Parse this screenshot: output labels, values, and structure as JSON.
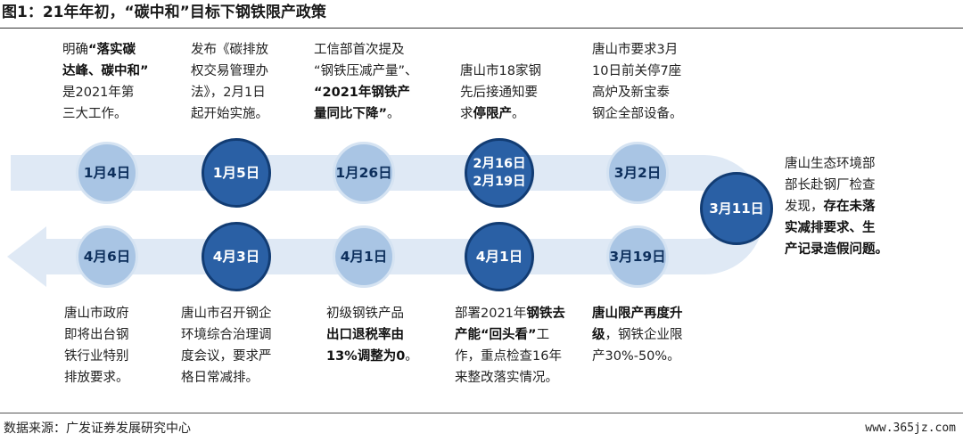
{
  "title": "图1：21年年初，“碳中和”目标下钢铁限产政策",
  "source": "数据来源：广发证券发展研究中心",
  "watermark": "www.365jz.com",
  "colors": {
    "band": "#dfe9f5",
    "light_node": "#a9c5e4",
    "dark_node": "#2a60a5"
  },
  "top_row": [
    {
      "date": "1月4日",
      "style": "light",
      "desc": [
        {
          "t": "明确"
        },
        {
          "t": "“落实碳\n达峰、碳中和”",
          "b": true
        },
        {
          "t": "\n是2021年第\n三大工作。"
        }
      ]
    },
    {
      "date": "1月5日",
      "style": "dark",
      "desc": [
        {
          "t": "发布《碳排放\n权交易管理办\n法》，2月1日\n起开始实施。"
        }
      ]
    },
    {
      "date": "1月26日",
      "style": "light",
      "desc": [
        {
          "t": "工信部首次提及\n“钢铁压减产量”、\n"
        },
        {
          "t": "“2021年钢铁产\n量同比下降”",
          "b": true
        },
        {
          "t": "。"
        }
      ]
    },
    {
      "date": "2月16日\n2月19日",
      "style": "dark",
      "desc": [
        {
          "t": "唐山市18家钢\n先后接通知要\n求"
        },
        {
          "t": "停限产",
          "b": true
        },
        {
          "t": "。"
        }
      ]
    },
    {
      "date": "3月2日",
      "style": "light",
      "desc": [
        {
          "t": "唐山市要求3月\n10日前关停7座\n高炉及新宝泰\n钢企全部设备。"
        }
      ]
    }
  ],
  "turn_node": {
    "date": "3月11日",
    "style": "dark",
    "desc": [
      {
        "t": "唐山生态环境部\n部长赴钢厂检查\n发现，"
      },
      {
        "t": "存在未落\n实减排要求、生\n产记录造假问题。",
        "b": true
      }
    ]
  },
  "bottom_row": [
    {
      "date": "4月6日",
      "style": "light",
      "desc": [
        {
          "t": "唐山市政府\n即将出台钢\n铁行业特别\n排放要求。"
        }
      ]
    },
    {
      "date": "4月3日",
      "style": "dark",
      "desc": [
        {
          "t": "唐山市召开钢企\n环境综合治理调\n度会议，要求严\n格日常减排。"
        }
      ]
    },
    {
      "date": "4月1日",
      "style": "light",
      "desc": [
        {
          "t": "初级钢铁产品\n"
        },
        {
          "t": "出口退税率由\n13%调整为0",
          "b": true
        },
        {
          "t": "。"
        }
      ]
    },
    {
      "date": "4月1日",
      "style": "dark",
      "desc": [
        {
          "t": "部署2021年"
        },
        {
          "t": "钢铁去\n产能“回头看”",
          "b": true
        },
        {
          "t": "工\n作，重点检查16年\n来整改落实情况。"
        }
      ]
    },
    {
      "date": "3月19日",
      "style": "light",
      "desc": [
        {
          "t": "唐山限产再度升\n级",
          "b": true
        },
        {
          "t": "，钢铁企业限\n产30%-50%。"
        }
      ]
    }
  ]
}
